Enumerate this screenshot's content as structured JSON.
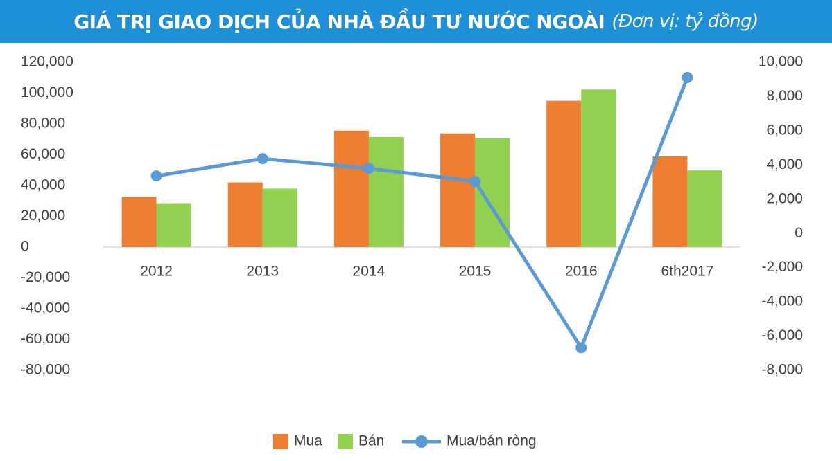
{
  "chart_data": {
    "type": "bar-line",
    "title": "GIÁ TRỊ GIAO DỊCH CỦA NHÀ ĐẦU TƯ NƯỚC NGOÀI",
    "subtitle": "(Đơn vị: tỷ đồng)",
    "categories": [
      "2012",
      "2013",
      "2014",
      "2015",
      "2016",
      "6th2017"
    ],
    "series": [
      {
        "name": "Mua",
        "color": "#ed7d31",
        "type": "bar",
        "values": [
          32600,
          42000,
          75600,
          73800,
          95000,
          58900
        ]
      },
      {
        "name": "Bán",
        "color": "#92d050",
        "type": "bar",
        "values": [
          28500,
          38000,
          71500,
          70600,
          102300,
          49800
        ]
      },
      {
        "name": "Mua/bán ròng",
        "color": "#5b9bd5",
        "type": "line",
        "axis": "y2",
        "values": [
          3360,
          4370,
          3800,
          3040,
          -6680,
          9110
        ]
      }
    ],
    "ylim": [
      -80000,
      120000
    ],
    "yticks": [
      {
        "value": -80000,
        "label": "-80,000"
      },
      {
        "value": -60000,
        "label": "-60,000"
      },
      {
        "value": -40000,
        "label": "-40,000"
      },
      {
        "value": -20000,
        "label": "-20,000"
      },
      0,
      {
        "value": 20000,
        "label": "20,000"
      },
      {
        "value": 40000,
        "label": "40,000"
      },
      {
        "value": 60000,
        "label": "60,000"
      },
      {
        "value": 80000,
        "label": "80,000"
      },
      {
        "value": 100000,
        "label": "100,000"
      },
      {
        "value": 120000,
        "label": "120,000"
      }
    ],
    "y2lim": [
      -8000,
      10000
    ],
    "y2ticks": [
      {
        "value": -8000,
        "label": "-8,000"
      },
      {
        "value": -6000,
        "label": "-6,000"
      },
      {
        "value": -4000,
        "label": "-4,000"
      },
      {
        "value": -2000,
        "label": "-2,000"
      },
      0,
      {
        "value": 2000,
        "label": "2,000"
      },
      {
        "value": 4000,
        "label": "4,000"
      },
      {
        "value": 6000,
        "label": "6,000"
      },
      {
        "value": 8000,
        "label": "8,000"
      },
      {
        "value": 10000,
        "label": "10,000"
      }
    ],
    "grid": false,
    "legend": "bottom"
  }
}
